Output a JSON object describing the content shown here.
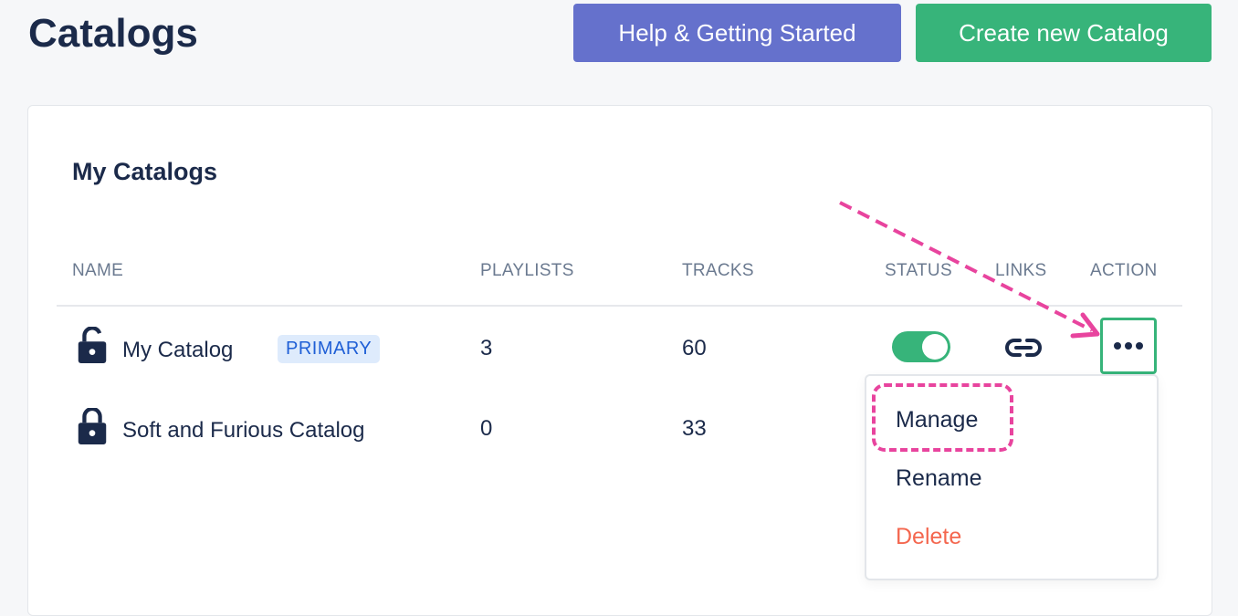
{
  "header": {
    "title": "Catalogs",
    "help_button": "Help & Getting Started",
    "create_button": "Create new Catalog"
  },
  "card": {
    "title": "My Catalogs",
    "columns": [
      "NAME",
      "PLAYLISTS",
      "TRACKS",
      "STATUS",
      "LINKS",
      "ACTION"
    ],
    "rows": [
      {
        "name": "My Catalog",
        "badge": "PRIMARY",
        "playlists": "3",
        "tracks": "60",
        "lock": "unlocked",
        "status_on": true
      },
      {
        "name": "Soft and Furious Catalog",
        "playlists": "0",
        "tracks": "33",
        "lock": "locked"
      }
    ]
  },
  "menu": {
    "items": [
      "Manage",
      "Rename",
      "Delete"
    ]
  },
  "colors": {
    "primary_green": "#37b47a",
    "help_purple": "#6571cc",
    "delete_red": "#f4674f",
    "annotation_pink": "#e8449e",
    "badge_blue": "#1f5fd6"
  }
}
